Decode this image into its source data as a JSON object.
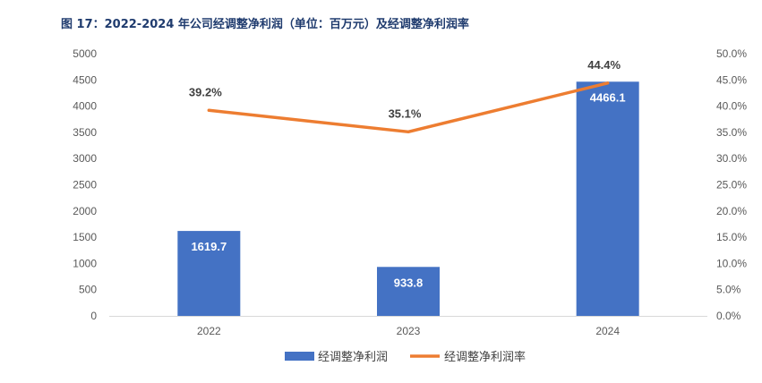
{
  "title": "图 17：2022-2024 年公司经调整净利润（单位：百万元）及经调整净利润率",
  "colors": {
    "bar": "#4472c4",
    "line": "#ed7d31",
    "axis": "#d9d9d9",
    "text": "#595959"
  },
  "chart_data": {
    "type": "bar",
    "categories": [
      "2022",
      "2023",
      "2024"
    ],
    "series": [
      {
        "name": "经调整净利润",
        "type": "bar",
        "axis": "left",
        "values": [
          1619.7,
          933.8,
          4466.1
        ],
        "labels": [
          "1619.7",
          "933.8",
          "4466.1"
        ]
      },
      {
        "name": "经调整净利润率",
        "type": "line",
        "axis": "right",
        "values": [
          39.2,
          35.1,
          44.4
        ],
        "labels": [
          "39.2%",
          "35.1%",
          "44.4%"
        ]
      }
    ],
    "ylim": [
      0,
      5000
    ],
    "y2lim": [
      0,
      50
    ],
    "yticks": [
      "0",
      "500",
      "1000",
      "1500",
      "2000",
      "2500",
      "3000",
      "3500",
      "4000",
      "4500",
      "5000"
    ],
    "y2ticks": [
      "0.0%",
      "5.0%",
      "10.0%",
      "15.0%",
      "20.0%",
      "25.0%",
      "30.0%",
      "35.0%",
      "40.0%",
      "45.0%",
      "50.0%"
    ],
    "grid": false,
    "legend": "bottom-center"
  }
}
